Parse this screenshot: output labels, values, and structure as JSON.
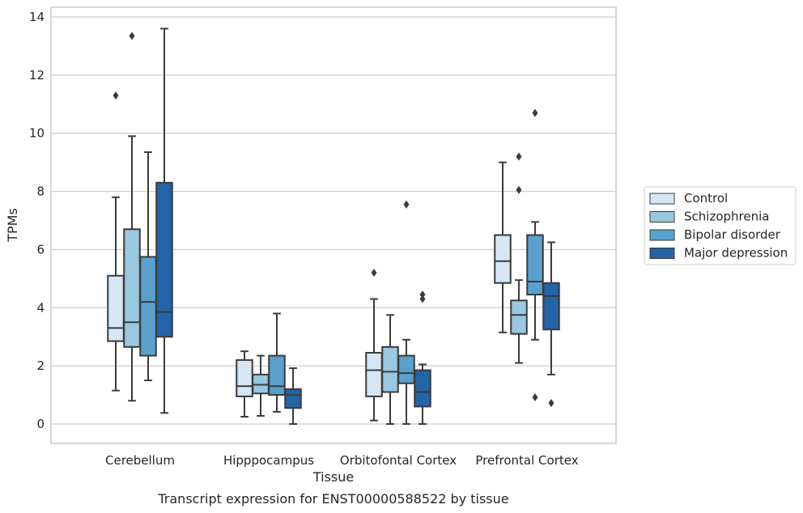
{
  "chart_data": {
    "type": "boxplot",
    "caption": "Transcript expression for ENST00000588522 by tissue",
    "xlabel": "Tissue",
    "ylabel": "TPMs",
    "ylim": [
      -0.65,
      14.3
    ],
    "yticks": [
      0,
      2,
      4,
      6,
      8,
      10,
      12,
      14
    ],
    "grid": true,
    "legend_position": "right",
    "categories": [
      "Cerebellum",
      "Hipppocampus",
      "Orbitofontal Cortex",
      "Prefrontal Cortex"
    ],
    "series": [
      {
        "name": "Control",
        "color": "#d6e6f4",
        "boxes": [
          {
            "whislo": 1.15,
            "q1": 2.85,
            "med": 3.3,
            "q3": 5.1,
            "whishi": 7.8,
            "fliers": [
              11.3
            ]
          },
          {
            "whislo": 0.25,
            "q1": 0.95,
            "med": 1.3,
            "q3": 2.2,
            "whishi": 2.5,
            "fliers": []
          },
          {
            "whislo": 0.12,
            "q1": 0.95,
            "med": 1.85,
            "q3": 2.45,
            "whishi": 4.3,
            "fliers": [
              5.2
            ]
          },
          {
            "whislo": 3.15,
            "q1": 4.85,
            "med": 5.6,
            "q3": 6.5,
            "whishi": 9.0,
            "fliers": []
          }
        ]
      },
      {
        "name": "Schizophrenia",
        "color": "#9ac8e0",
        "boxes": [
          {
            "whislo": 0.8,
            "q1": 2.65,
            "med": 3.5,
            "q3": 6.7,
            "whishi": 9.9,
            "fliers": [
              13.35
            ]
          },
          {
            "whislo": 0.28,
            "q1": 1.05,
            "med": 1.35,
            "q3": 1.7,
            "whishi": 2.35,
            "fliers": []
          },
          {
            "whislo": 0.0,
            "q1": 1.1,
            "med": 1.8,
            "q3": 2.65,
            "whishi": 3.75,
            "fliers": []
          },
          {
            "whislo": 2.1,
            "q1": 3.1,
            "med": 3.75,
            "q3": 4.25,
            "whishi": 4.95,
            "fliers": [
              9.2,
              8.05
            ]
          }
        ]
      },
      {
        "name": "Bipolar disorder",
        "color": "#5aa0cd",
        "boxes": [
          {
            "whislo": 1.5,
            "q1": 2.35,
            "med": 4.2,
            "q3": 5.75,
            "whishi": 9.35,
            "fliers": []
          },
          {
            "whislo": 0.42,
            "q1": 1.0,
            "med": 1.3,
            "q3": 2.35,
            "whishi": 3.8,
            "fliers": []
          },
          {
            "whislo": 0.0,
            "q1": 1.4,
            "med": 1.75,
            "q3": 2.35,
            "whishi": 2.9,
            "fliers": [
              7.55
            ]
          },
          {
            "whislo": 2.9,
            "q1": 4.45,
            "med": 4.9,
            "q3": 6.5,
            "whishi": 6.95,
            "fliers": [
              10.7,
              0.92
            ]
          }
        ]
      },
      {
        "name": "Major depression",
        "color": "#2363a8",
        "boxes": [
          {
            "whislo": 0.38,
            "q1": 3.0,
            "med": 3.85,
            "q3": 8.3,
            "whishi": 13.6,
            "fliers": []
          },
          {
            "whislo": 0.0,
            "q1": 0.55,
            "med": 1.0,
            "q3": 1.2,
            "whishi": 1.92,
            "fliers": []
          },
          {
            "whislo": 0.0,
            "q1": 0.6,
            "med": 1.1,
            "q3": 1.85,
            "whishi": 2.05,
            "fliers": [
              4.45,
              4.3
            ]
          },
          {
            "whislo": 1.7,
            "q1": 3.25,
            "med": 4.4,
            "q3": 4.85,
            "whishi": 6.25,
            "fliers": [
              0.72
            ]
          }
        ]
      }
    ]
  }
}
